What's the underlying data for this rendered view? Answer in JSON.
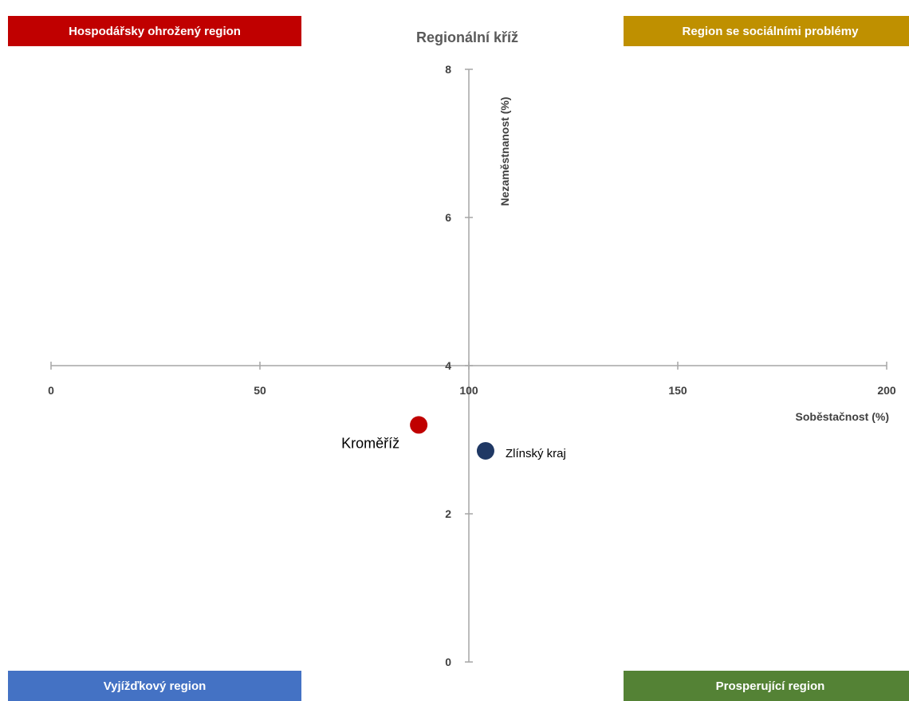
{
  "quadrants": {
    "top_left": "Hospodářsky ohrožený region",
    "top_right": "Region se sociálními problémy",
    "bottom_left": "Vyjížďkový region",
    "bottom_right": "Prosperující region"
  },
  "colors": {
    "top_left": "#c00000",
    "top_right": "#bf9000",
    "bottom_left": "#4472c4",
    "bottom_right": "#548235",
    "axis": "#a6a6a6"
  },
  "chart_data": {
    "type": "scatter",
    "title": "Regionální kříž",
    "xlabel": "Soběstačnost (%)",
    "ylabel": "Nezaměstnanost (%)",
    "xlim": [
      0,
      200
    ],
    "ylim": [
      0,
      8
    ],
    "x_ticks": [
      "0",
      "50",
      "100",
      "150",
      "200"
    ],
    "y_ticks": [
      "0",
      "2",
      "4",
      "6",
      "8"
    ],
    "axes_cross": {
      "x": 100,
      "y": 4
    },
    "grid": false,
    "points": [
      {
        "label": "Kroměříž",
        "x": 88,
        "y": 3.2,
        "color": "#c00000"
      },
      {
        "label": "Zlínský kraj",
        "x": 104,
        "y": 2.85,
        "color": "#1f3864"
      }
    ]
  }
}
